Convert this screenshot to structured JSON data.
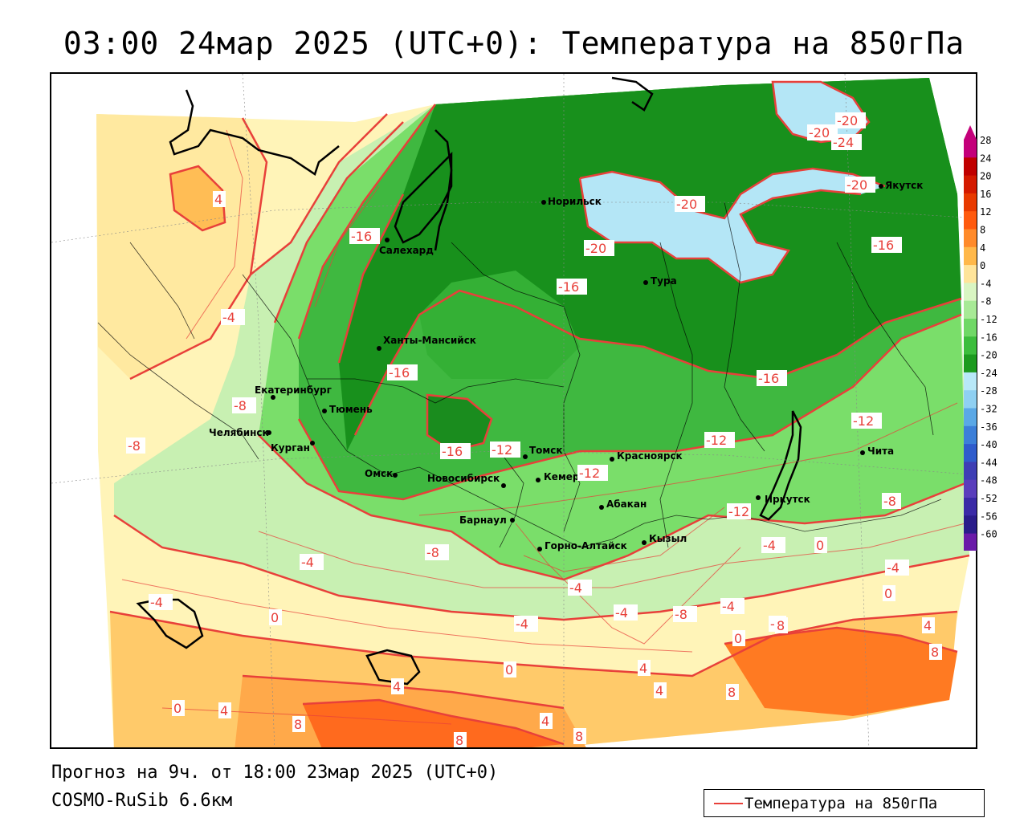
{
  "header": {
    "title": "03:00 24мар 2025 (UTC+0): Температура на 850гПа"
  },
  "footer": {
    "forecast": "Прогноз на 9ч. от 18:00 23мар 2025 (UTC+0)",
    "model": "COSMO-RuSib 6.6км"
  },
  "legend": {
    "label": "Температура на 850гПа",
    "line_color": "#e8403a"
  },
  "scale": {
    "labels": [
      "28",
      "24",
      "20",
      "16",
      "12",
      "8",
      "4",
      "0",
      "-4",
      "-8",
      "-12",
      "-16",
      "-20",
      "-24",
      "-28",
      "-32",
      "-36",
      "-40",
      "-44",
      "-48",
      "-52",
      "-56",
      "-60"
    ],
    "colors": [
      "#c4007a",
      "#c00000",
      "#d41a00",
      "#e83a00",
      "#ff5a0e",
      "#ff8a2a",
      "#ffb84a",
      "#ffe49a",
      "#d9f5c2",
      "#a8ea96",
      "#70d866",
      "#3cbd3c",
      "#1c9a1e",
      "#b8e8f8",
      "#8fd0f2",
      "#5aa8e6",
      "#3c7fd8",
      "#2f5ccc",
      "#3e3eb4",
      "#5a3ebc",
      "#3a2aa6",
      "#2a1c8a",
      "#6a1aa8"
    ]
  },
  "cities": [
    {
      "name": "Норильск"
    },
    {
      "name": "Якутск"
    },
    {
      "name": "Салехард"
    },
    {
      "name": "Тура"
    },
    {
      "name": "Ханты-Мансийск"
    },
    {
      "name": "Екатеринбург"
    },
    {
      "name": "Тюмень"
    },
    {
      "name": "Челябинск"
    },
    {
      "name": "Курган"
    },
    {
      "name": "Омск"
    },
    {
      "name": "Новосибирск"
    },
    {
      "name": "Томск"
    },
    {
      "name": "Кемерово"
    },
    {
      "name": "Красноярск"
    },
    {
      "name": "Абакан"
    },
    {
      "name": "Барнаул"
    },
    {
      "name": "Горно-Алтайск"
    },
    {
      "name": "Кызыл"
    },
    {
      "name": "Иркутск"
    },
    {
      "name": "Чита"
    }
  ],
  "contour_labels": [
    "-20",
    "-20",
    "-24",
    "-20",
    "-20",
    "-20",
    "-16",
    "-16",
    "-16",
    "-16",
    "-12",
    "-16",
    "-12",
    "-12",
    "-16",
    "-12",
    "-12",
    "-8",
    "-8",
    "-8",
    "-4",
    "-4",
    "-4",
    "-4",
    "-4",
    "-8",
    "-4",
    "-4",
    "-8",
    "0",
    "0",
    "0",
    "0",
    "0",
    "4",
    "4",
    "4",
    "4",
    "4",
    "4",
    "8",
    "8",
    "8",
    "8",
    "8",
    "8",
    "4",
    "-4",
    "-8",
    "-4",
    "0"
  ]
}
